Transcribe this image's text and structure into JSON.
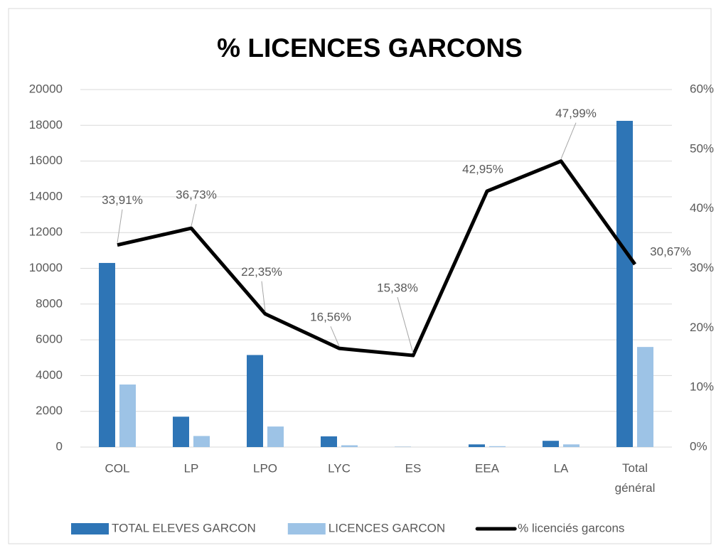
{
  "chart_data": {
    "type": "bar-line",
    "title": "% LICENCES GARCONS",
    "categories": [
      "COL",
      "LP",
      "LPO",
      "LYC",
      "ES",
      "EEA",
      "LA",
      "Total général"
    ],
    "series": [
      {
        "name": "TOTAL ELEVES GARCON",
        "type": "bar",
        "color": "#2e75b6",
        "values": [
          10300,
          1700,
          5150,
          600,
          10,
          150,
          350,
          18250
        ]
      },
      {
        "name": "LICENCES GARCON",
        "type": "bar",
        "color": "#9dc3e6",
        "values": [
          3500,
          620,
          1150,
          100,
          0,
          50,
          150,
          5600
        ]
      },
      {
        "name": "% licenciés garcons",
        "type": "line",
        "axis": "y2",
        "color": "#000000",
        "values": [
          33.91,
          36.73,
          22.35,
          16.56,
          15.38,
          42.95,
          47.99,
          30.67
        ],
        "value_labels": [
          "33,91%",
          "36,73%",
          "22,35%",
          "16,56%",
          "15,38%",
          "42,95%",
          "47,99%",
          "30,67%"
        ]
      }
    ],
    "ylim": [
      0,
      20000
    ],
    "yticks": [
      0,
      2000,
      4000,
      6000,
      8000,
      10000,
      12000,
      14000,
      16000,
      18000,
      20000
    ],
    "y2lim": [
      0,
      60
    ],
    "y2ticks": [
      {
        "value": 0,
        "label": "0%"
      },
      {
        "value": 10,
        "label": "10%"
      },
      {
        "value": 20,
        "label": "20%"
      },
      {
        "value": 30,
        "label": "30%"
      },
      {
        "value": 40,
        "label": "40%"
      },
      {
        "value": 50,
        "label": "50%"
      },
      {
        "value": 60,
        "label": "60%"
      }
    ],
    "grid": true,
    "legend": "bottom"
  }
}
